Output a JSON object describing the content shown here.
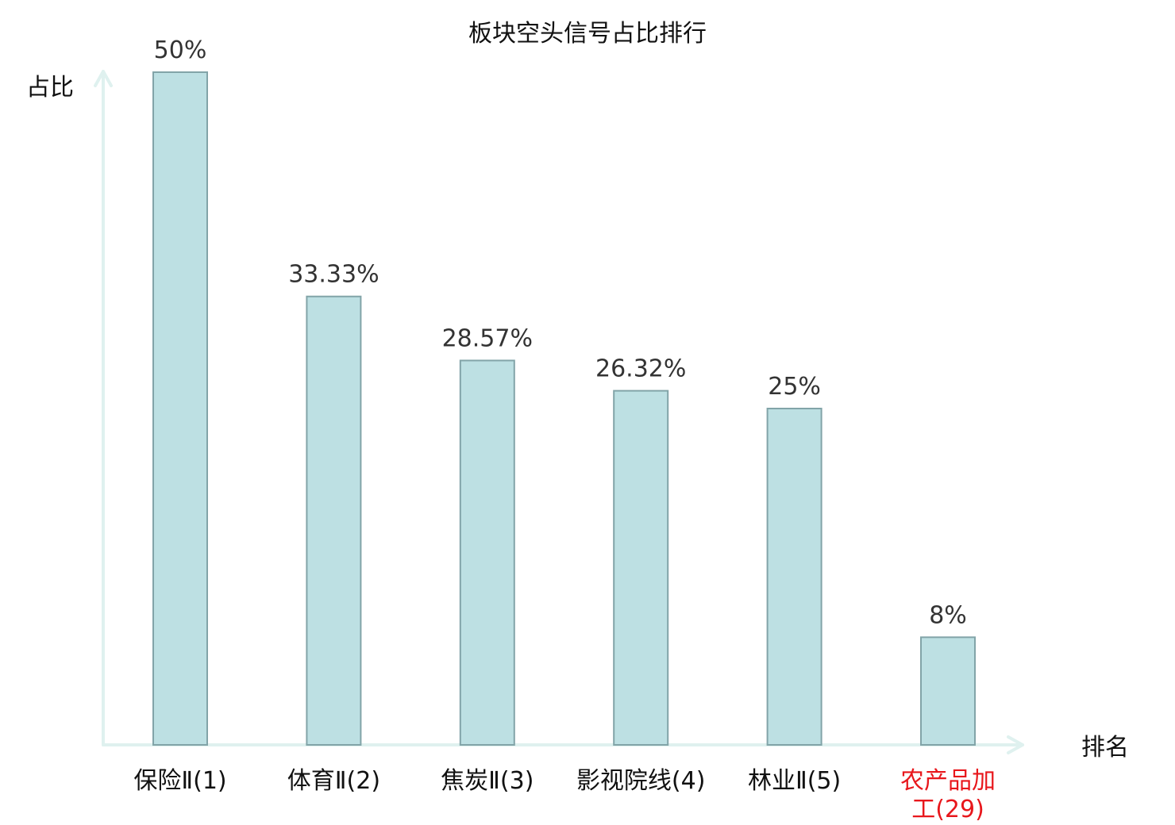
{
  "chart_data": {
    "type": "bar",
    "title": "板块空头信号占比排行",
    "ylabel": "占比",
    "xlabel": "排名",
    "ylim": [
      0,
      50
    ],
    "categories": [
      "保险Ⅱ(1)",
      "体育Ⅱ(2)",
      "焦炭Ⅱ(3)",
      "影视院线(4)",
      "林业Ⅱ(5)",
      "农产品加工(29)"
    ],
    "category_lines": [
      [
        "保险Ⅱ(1)"
      ],
      [
        "体育Ⅱ(2)"
      ],
      [
        "焦炭Ⅱ(3)"
      ],
      [
        "影视院线(4)"
      ],
      [
        "林业Ⅱ(5)"
      ],
      [
        "农产品加",
        "工(29)"
      ]
    ],
    "values": [
      50,
      33.33,
      28.57,
      26.32,
      25,
      8
    ],
    "value_labels": [
      "50%",
      "33.33%",
      "28.57%",
      "26.32%",
      "25%",
      "8%"
    ],
    "highlight_index": 5,
    "grid": false,
    "colors": {
      "bar_fill": "#bde0e3",
      "bar_stroke": "#82a4a8",
      "axis": "#dff1ef",
      "label_normal": "#111111",
      "label_highlight": "#e8171c"
    }
  }
}
